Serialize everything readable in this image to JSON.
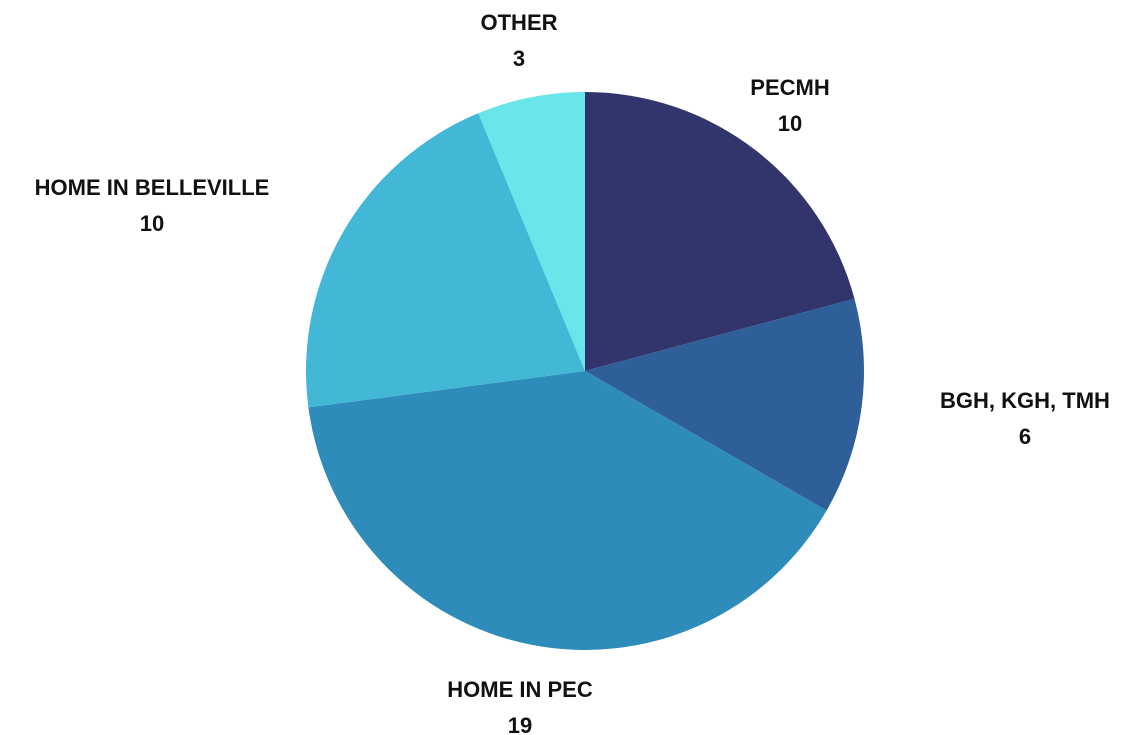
{
  "chart_data": {
    "type": "pie",
    "title": "",
    "start_angle_deg": 0,
    "direction": "clockwise",
    "slices": [
      {
        "label": "PECMH",
        "value": 10,
        "color": "#32356b"
      },
      {
        "label": "BGH, KGH, TMH",
        "value": 6,
        "color": "#2e5f98"
      },
      {
        "label": "HOME IN PEC",
        "value": 19,
        "color": "#2e8cba"
      },
      {
        "label": "HOME IN BELLEVILLE",
        "value": 10,
        "color": "#42b7d6"
      },
      {
        "label": "OTHER",
        "value": 3,
        "color": "#6ae5e9"
      }
    ]
  }
}
